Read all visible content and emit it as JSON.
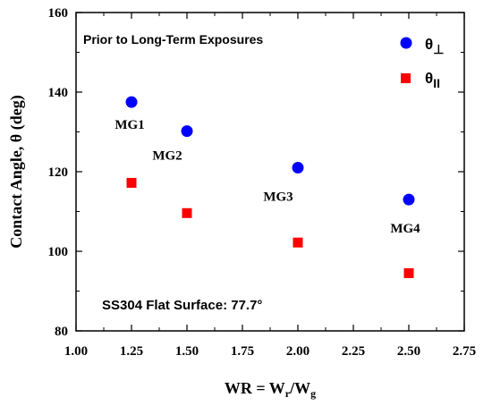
{
  "chart_data": {
    "type": "scatter",
    "title": "",
    "annotation_top": "Prior to Long-Term Exposures",
    "annotation_bottom": "SS304 Flat Surface: 77.7°",
    "xlabel": "WR = W",
    "xlabel_sub_r": "r",
    "xlabel_mid": "/W",
    "xlabel_sub_g": "g",
    "ylabel": "Contact Angle, θ (deg)",
    "xlim": [
      1.0,
      2.75
    ],
    "ylim": [
      80,
      160
    ],
    "xticks": [
      "1.00",
      "1.25",
      "1.50",
      "1.75",
      "2.00",
      "2.25",
      "2.50",
      "2.75"
    ],
    "yticks": [
      "80",
      "100",
      "120",
      "140",
      "160"
    ],
    "legend_position": "top-right",
    "point_labels": [
      "MG1",
      "MG2",
      "MG3",
      "MG4"
    ],
    "series": [
      {
        "name": "θ⊥",
        "legend_symbol": "θ",
        "legend_sub": "⊥",
        "marker": "circle",
        "color": "#0000ff",
        "x": [
          1.25,
          1.5,
          2.0,
          2.5
        ],
        "y": [
          137.5,
          130.2,
          121.0,
          113.0
        ]
      },
      {
        "name": "θII",
        "legend_symbol": "θ",
        "legend_sub": "II",
        "marker": "square",
        "color": "#ff0000",
        "x": [
          1.25,
          1.5,
          2.0,
          2.5
        ],
        "y": [
          117.2,
          109.6,
          102.2,
          94.5
        ]
      }
    ]
  }
}
